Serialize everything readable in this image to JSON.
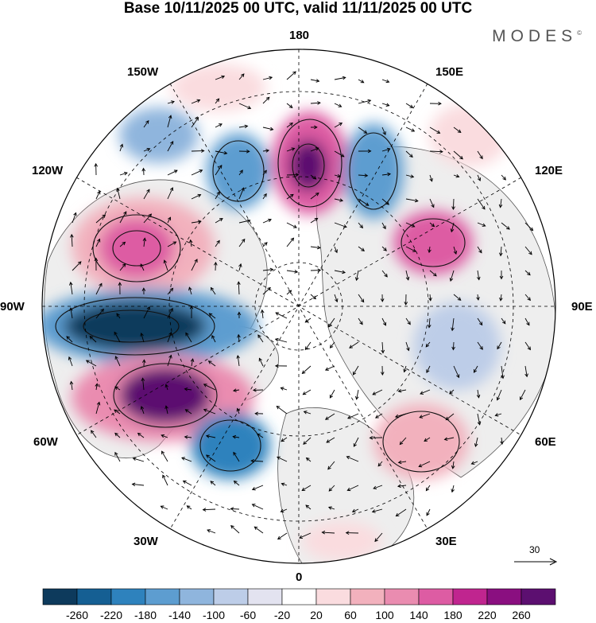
{
  "title": "Base 10/11/2025 00 UTC, valid 11/11/2025 00 UTC",
  "brand": {
    "name": "MODES",
    "mark": "©"
  },
  "longitude_labels": {
    "lon_180": "180",
    "lon_150e": "150E",
    "lon_120e": "120E",
    "lon_90e": "90E",
    "lon_60e": "60E",
    "lon_30e": "30E",
    "lon_0": "0",
    "lon_30w": "30W",
    "lon_60w": "60W",
    "lon_90w": "90W",
    "lon_120w": "120W",
    "lon_150w": "150W"
  },
  "vector_key": {
    "value": "30"
  },
  "colorbar": {
    "ticks": [
      "-260",
      "-220",
      "-180",
      "-140",
      "-100",
      "-60",
      "-20",
      "20",
      "60",
      "100",
      "140",
      "180",
      "220",
      "260"
    ],
    "colors": [
      "#0d3a5c",
      "#155f93",
      "#2e82bd",
      "#5d9dd0",
      "#8fb5dd",
      "#bdcde8",
      "#e3e3f0",
      "#ffffff",
      "#fadcdf",
      "#f2b1bd",
      "#ea8cb0",
      "#dd5ca3",
      "#c0258f",
      "#8a0f80",
      "#5c0f70"
    ]
  },
  "colors": {
    "land_fill": "#eeeeee",
    "coast_line": "#555555",
    "grid_line": "#000000"
  },
  "anomaly_centers": [
    {
      "id": "nw-pos",
      "value": 180
    },
    {
      "id": "w-neg",
      "value": -260
    },
    {
      "id": "sw-pos",
      "value": 260
    },
    {
      "id": "s-neg",
      "value": -180
    },
    {
      "id": "n-pos",
      "value": 260
    },
    {
      "id": "ne-neg",
      "value": -140
    },
    {
      "id": "e-pos",
      "value": 180
    },
    {
      "id": "n-neg1",
      "value": -140
    },
    {
      "id": "n-neg2",
      "value": -60
    },
    {
      "id": "e-neg",
      "value": -100
    },
    {
      "id": "se-pos",
      "value": 100
    }
  ]
}
